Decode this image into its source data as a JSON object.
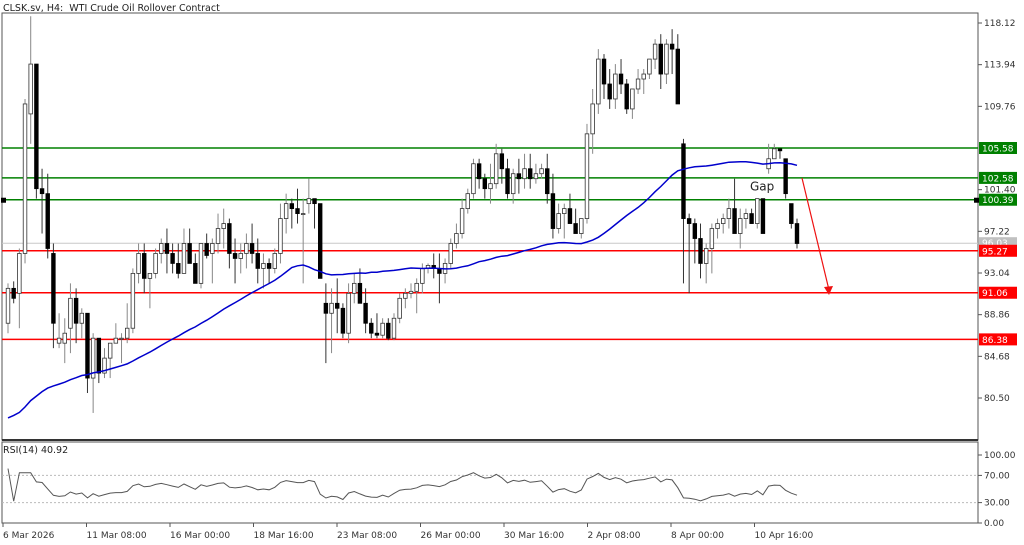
{
  "header": {
    "symbol": "CLSK.sv",
    "timeframe": "H4",
    "description": "WTI Crude Oil Rollover Contract",
    "title_text": "CLSK.sv, H4:  WTI Crude Oil Rollover Contract"
  },
  "indicator": {
    "label_text": "RSI(14) 40.92",
    "name": "RSI(14)",
    "value": 40.92
  },
  "annotation": {
    "gap_label": "Gap"
  },
  "colors": {
    "support": "#ff0000",
    "resistance": "#008000",
    "ma": "#0000cc",
    "arrow": "#ee1111",
    "bear": "#000000",
    "bull": "#ffffff",
    "current_price_label": "#c0c0c0"
  },
  "price_axis": {
    "ticks": [
      "118.12",
      "113.94",
      "109.76",
      "101.40",
      "97.22",
      "93.04",
      "88.86",
      "84.68",
      "80.50"
    ]
  },
  "levels": [
    {
      "price": "105.58",
      "type": "resistance"
    },
    {
      "price": "102.58",
      "type": "resistance"
    },
    {
      "price": "100.39",
      "type": "resistance"
    },
    {
      "price": "95.27",
      "type": "support"
    },
    {
      "price": "91.06",
      "type": "support"
    },
    {
      "price": "86.38",
      "type": "support"
    }
  ],
  "current_price": "96.03",
  "rsi_axis": {
    "ticks": [
      "100.00",
      "70.00",
      "30.00",
      "0.00"
    ]
  },
  "time_axis": {
    "ticks": [
      "6 Mar 2026",
      "11 Mar 08:00",
      "16 Mar 00:00",
      "18 Mar 16:00",
      "23 Mar 08:00",
      "26 Mar 00:00",
      "30 Mar 16:00",
      "2 Apr 08:00",
      "8 Apr 00:00",
      "10 Apr 16:00"
    ]
  },
  "chart_data": {
    "type": "candlestick",
    "title": "CLSK.sv, H4: WTI Crude Oil Rollover Contract",
    "xlabel": "",
    "ylabel": "Price",
    "ylim": [
      78.5,
      120.0
    ],
    "x_ticks": [
      "6 Mar 2026",
      "11 Mar 08:00",
      "16 Mar 00:00",
      "18 Mar 16:00",
      "23 Mar 08:00",
      "26 Mar 00:00",
      "30 Mar 16:00",
      "2 Apr 08:00",
      "8 Apr 00:00",
      "10 Apr 16:00"
    ],
    "y_ticks": [
      118.12,
      113.94,
      109.76,
      101.4,
      97.22,
      93.04,
      88.86,
      84.68,
      80.5
    ],
    "horizontal_levels": {
      "resistance": [
        105.58,
        102.58,
        100.39
      ],
      "support": [
        95.27,
        91.06,
        86.38
      ]
    },
    "current_price": 96.03,
    "moving_average_color": "blue",
    "annotations": [
      {
        "text": "Gap",
        "x": "10 Apr",
        "y": 101.3
      },
      {
        "type": "arrow",
        "from": [
          101.9,
          "12 Apr"
        ],
        "to": [
          91.06,
          "13 Apr"
        ],
        "color": "red"
      }
    ],
    "candles_ohlc": [
      [
        88.0,
        92.0,
        87.0,
        91.5
      ],
      [
        91.5,
        92.2,
        90.0,
        90.5
      ],
      [
        91.0,
        95.5,
        87.5,
        95.0
      ],
      [
        95.0,
        110.5,
        94.0,
        110.0
      ],
      [
        109.0,
        118.8,
        106.0,
        114.0
      ],
      [
        114.0,
        114.0,
        100.5,
        101.5
      ],
      [
        101.5,
        103.5,
        97.0,
        101.0
      ],
      [
        101.0,
        103.0,
        94.5,
        95.5
      ],
      [
        95.0,
        96.0,
        85.5,
        88.0
      ],
      [
        86.0,
        89.0,
        85.5,
        86.5
      ],
      [
        86.0,
        88.5,
        84.0,
        87.0
      ],
      [
        87.5,
        92.0,
        85.0,
        90.5
      ],
      [
        90.5,
        91.5,
        86.0,
        88.0
      ],
      [
        88.0,
        89.5,
        86.5,
        89.0
      ],
      [
        89.0,
        89.0,
        81.0,
        82.5
      ],
      [
        82.5,
        87.0,
        79.0,
        86.5
      ],
      [
        86.5,
        86.5,
        82.0,
        83.0
      ],
      [
        83.0,
        85.5,
        82.5,
        84.5
      ],
      [
        84.5,
        86.0,
        82.5,
        86.0
      ],
      [
        86.0,
        88.0,
        86.0,
        86.5
      ],
      [
        86.5,
        87.0,
        84.0,
        86.5
      ],
      [
        86.5,
        90.0,
        86.0,
        87.5
      ],
      [
        87.5,
        93.5,
        87.0,
        93.0
      ],
      [
        93.0,
        96.0,
        92.0,
        95.0
      ],
      [
        95.0,
        96.0,
        91.0,
        92.5
      ],
      [
        92.5,
        93.0,
        89.5,
        93.0
      ],
      [
        93.0,
        95.5,
        92.5,
        95.0
      ],
      [
        95.0,
        96.5,
        94.0,
        96.0
      ],
      [
        96.0,
        97.5,
        93.0,
        95.0
      ],
      [
        95.0,
        96.0,
        93.0,
        94.0
      ],
      [
        94.0,
        96.0,
        92.5,
        93.0
      ],
      [
        93.0,
        97.5,
        93.0,
        96.0
      ],
      [
        96.0,
        97.5,
        95.0,
        94.0
      ],
      [
        94.0,
        95.0,
        92.5,
        92.0
      ],
      [
        92.0,
        96.0,
        91.5,
        96.0
      ],
      [
        96.0,
        97.0,
        94.5,
        94.8
      ],
      [
        95.0,
        96.5,
        92.0,
        96.0
      ],
      [
        96.0,
        99.0,
        95.0,
        97.5
      ],
      [
        97.5,
        99.5,
        95.5,
        98.0
      ],
      [
        98.0,
        98.5,
        93.5,
        95.0
      ],
      [
        95.0,
        96.5,
        92.0,
        94.5
      ],
      [
        94.5,
        96.0,
        93.0,
        95.0
      ],
      [
        95.0,
        97.0,
        93.5,
        96.0
      ],
      [
        96.0,
        98.0,
        94.0,
        95.0
      ],
      [
        95.0,
        96.5,
        92.0,
        93.5
      ],
      [
        93.5,
        95.0,
        91.5,
        94.0
      ],
      [
        94.0,
        94.5,
        92.0,
        93.5
      ],
      [
        93.5,
        95.5,
        93.0,
        95.0
      ],
      [
        95.0,
        100.0,
        94.0,
        98.5
      ],
      [
        98.5,
        101.0,
        97.0,
        100.0
      ],
      [
        100.0,
        100.5,
        97.5,
        99.5
      ],
      [
        99.5,
        101.5,
        98.0,
        99.0
      ],
      [
        99.0,
        100.5,
        92.0,
        99.0
      ],
      [
        100.0,
        102.5,
        99.0,
        100.5
      ],
      [
        100.5,
        100.5,
        97.5,
        100.0
      ],
      [
        100.0,
        100.0,
        93.5,
        92.5
      ],
      [
        90.0,
        92.0,
        84.0,
        89.0
      ],
      [
        89.0,
        91.5,
        85.0,
        90.0
      ],
      [
        90.0,
        92.5,
        87.0,
        89.5
      ],
      [
        89.5,
        90.0,
        86.5,
        87.0
      ],
      [
        87.0,
        92.0,
        86.0,
        91.0
      ],
      [
        91.0,
        93.0,
        90.0,
        92.0
      ],
      [
        92.0,
        93.5,
        91.5,
        90.0
      ],
      [
        90.0,
        91.5,
        87.0,
        88.0
      ],
      [
        88.0,
        88.5,
        86.5,
        87.0
      ],
      [
        87.0,
        89.0,
        86.5,
        86.8
      ],
      [
        86.8,
        88.5,
        86.5,
        88.0
      ],
      [
        88.0,
        88.5,
        86.3,
        86.5
      ],
      [
        86.5,
        89.0,
        86.3,
        88.5
      ],
      [
        88.5,
        91.0,
        88.0,
        90.5
      ],
      [
        90.5,
        91.5,
        89.5,
        91.0
      ],
      [
        91.0,
        92.0,
        90.5,
        91.2
      ],
      [
        91.2,
        92.5,
        89.0,
        92.0
      ],
      [
        92.0,
        94.0,
        91.0,
        93.5
      ],
      [
        93.5,
        94.0,
        93.0,
        93.8
      ],
      [
        93.8,
        95.0,
        92.5,
        93.5
      ],
      [
        93.5,
        95.0,
        90.0,
        93.0
      ],
      [
        93.0,
        94.5,
        92.0,
        94.0
      ],
      [
        94.0,
        96.5,
        93.5,
        96.0
      ],
      [
        96.0,
        98.0,
        95.5,
        97.0
      ],
      [
        97.0,
        100.5,
        96.5,
        99.5
      ],
      [
        99.5,
        101.5,
        99.0,
        101.0
      ],
      [
        101.0,
        104.5,
        100.5,
        104.0
      ],
      [
        104.0,
        104.5,
        101.5,
        102.5
      ],
      [
        102.5,
        103.0,
        100.5,
        101.5
      ],
      [
        101.5,
        104.0,
        100.0,
        102.0
      ],
      [
        102.0,
        106.0,
        101.5,
        105.0
      ],
      [
        105.0,
        105.5,
        102.0,
        103.5
      ],
      [
        103.5,
        104.5,
        100.5,
        101.0
      ],
      [
        101.0,
        103.5,
        100.0,
        103.0
      ],
      [
        103.0,
        104.5,
        101.0,
        102.5
      ],
      [
        102.5,
        105.0,
        101.5,
        103.5
      ],
      [
        103.5,
        105.0,
        101.5,
        102.5
      ],
      [
        102.5,
        104.0,
        102.0,
        103.0
      ],
      [
        103.0,
        104.0,
        102.5,
        103.5
      ],
      [
        103.5,
        105.0,
        100.0,
        101.0
      ],
      [
        101.0,
        103.0,
        96.5,
        97.5
      ],
      [
        97.5,
        100.0,
        97.0,
        99.0
      ],
      [
        99.0,
        100.0,
        96.5,
        99.5
      ],
      [
        99.5,
        101.0,
        98.0,
        98.0
      ],
      [
        98.0,
        99.5,
        97.5,
        97.0
      ],
      [
        97.0,
        98.5,
        96.5,
        98.5
      ],
      [
        98.5,
        108.0,
        98.0,
        107.0
      ],
      [
        107.0,
        111.5,
        105.0,
        110.0
      ],
      [
        110.0,
        115.5,
        109.0,
        114.5
      ],
      [
        114.5,
        115.0,
        110.5,
        112.0
      ],
      [
        112.0,
        113.5,
        109.5,
        110.5
      ],
      [
        110.5,
        114.0,
        109.5,
        113.0
      ],
      [
        113.0,
        114.5,
        111.0,
        112.0
      ],
      [
        112.0,
        112.5,
        109.0,
        109.5
      ],
      [
        109.5,
        111.0,
        108.5,
        111.5
      ],
      [
        111.5,
        113.5,
        111.0,
        112.5
      ],
      [
        112.5,
        113.5,
        111.0,
        113.0
      ],
      [
        113.0,
        114.0,
        112.5,
        114.5
      ],
      [
        114.5,
        116.5,
        113.5,
        116.0
      ],
      [
        116.0,
        117.0,
        111.5,
        113.0
      ],
      [
        113.0,
        116.5,
        112.0,
        116.0
      ],
      [
        116.0,
        117.5,
        113.0,
        115.5
      ],
      [
        115.5,
        117.0,
        110.5,
        110.0
      ],
      [
        106.0,
        106.5,
        92.0,
        98.5
      ],
      [
        98.5,
        99.0,
        91.0,
        98.0
      ],
      [
        98.0,
        98.5,
        94.0,
        96.5
      ],
      [
        96.5,
        98.0,
        92.5,
        94.0
      ],
      [
        94.0,
        96.0,
        92.0,
        95.5
      ],
      [
        95.5,
        98.0,
        93.0,
        97.5
      ],
      [
        97.5,
        98.5,
        96.5,
        98.0
      ],
      [
        98.0,
        99.0,
        97.0,
        98.5
      ],
      [
        98.5,
        100.5,
        97.5,
        99.5
      ],
      [
        99.5,
        102.5,
        97.0,
        97.0
      ],
      [
        97.0,
        99.5,
        95.5,
        98.5
      ],
      [
        98.5,
        99.5,
        97.5,
        99.0
      ],
      [
        99.0,
        99.5,
        98.0,
        98.0
      ],
      [
        98.0,
        100.5,
        97.5,
        100.5
      ],
      [
        100.5,
        100.5,
        98.0,
        97.0
      ],
      [
        103.5,
        106.0,
        103.0,
        104.5
      ],
      [
        104.5,
        106.0,
        104.5,
        105.5
      ],
      [
        105.5,
        105.5,
        104.5,
        105.3
      ],
      [
        104.5,
        104.5,
        100.5,
        101.0
      ],
      [
        100.0,
        100.0,
        97.5,
        98.0
      ],
      [
        98.0,
        98.5,
        95.5,
        96.0
      ]
    ],
    "rsi_series_range": [
      30,
      75
    ],
    "rsi_levels": [
      70,
      30
    ],
    "rsi_ylim": [
      0,
      100
    ]
  }
}
